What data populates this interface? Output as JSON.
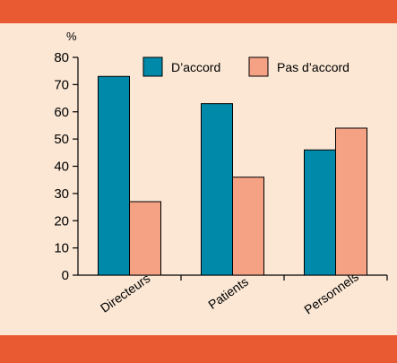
{
  "chart_data": {
    "type": "bar",
    "title": "",
    "xlabel": "",
    "ylabel": "%",
    "ylim": [
      0,
      80
    ],
    "yticks": [
      0,
      10,
      20,
      30,
      40,
      50,
      60,
      70,
      80
    ],
    "categories": [
      "Directeurs",
      "Patients",
      "Personnels"
    ],
    "series": [
      {
        "name": "D’accord",
        "values": [
          73,
          63,
          46
        ],
        "color": "#0089a8"
      },
      {
        "name": "Pas d’accord",
        "values": [
          27,
          36,
          54
        ],
        "color": "#f4a184"
      }
    ],
    "legend_position": "top",
    "grid": false
  },
  "colors": {
    "background": "#fbe7d4",
    "band": "#e95a32"
  }
}
